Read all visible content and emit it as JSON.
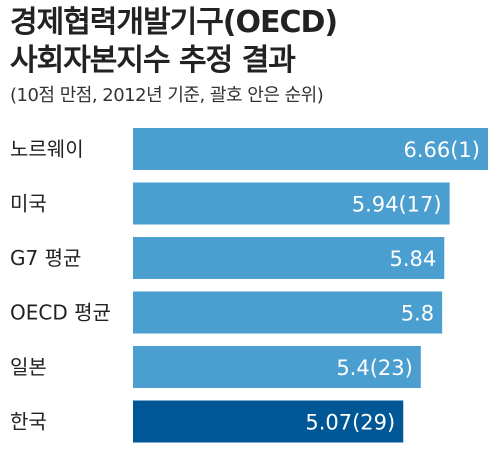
{
  "header": {
    "title_line1": "경제협력개발기구(OECD)",
    "title_line2": "사회자본지수 추정 결과",
    "subtitle": "(10점 만점, 2012년 기준, 괄호 안은 순위)"
  },
  "colors": {
    "bar": "#4a9fd0",
    "highlight_bar": "#005796",
    "highlight_text": "#fff3a0",
    "value_text": "#ffffff"
  },
  "chart_data": {
    "type": "bar",
    "orientation": "horizontal",
    "title": "경제협력개발기구(OECD) 사회자본지수 추정 결과",
    "subtitle": "(10점 만점, 2012년 기준, 괄호 안은 순위)",
    "categories": [
      "노르웨이",
      "미국",
      "G7 평균",
      "OECD 평균",
      "일본",
      "한국"
    ],
    "values": [
      6.66,
      5.94,
      5.84,
      5.8,
      5.4,
      5.07
    ],
    "value_labels": [
      "6.66(1)",
      "5.94(17)",
      "5.84",
      "5.8",
      "5.4(23)",
      "5.07(29)"
    ],
    "highlight_index": 5
  }
}
